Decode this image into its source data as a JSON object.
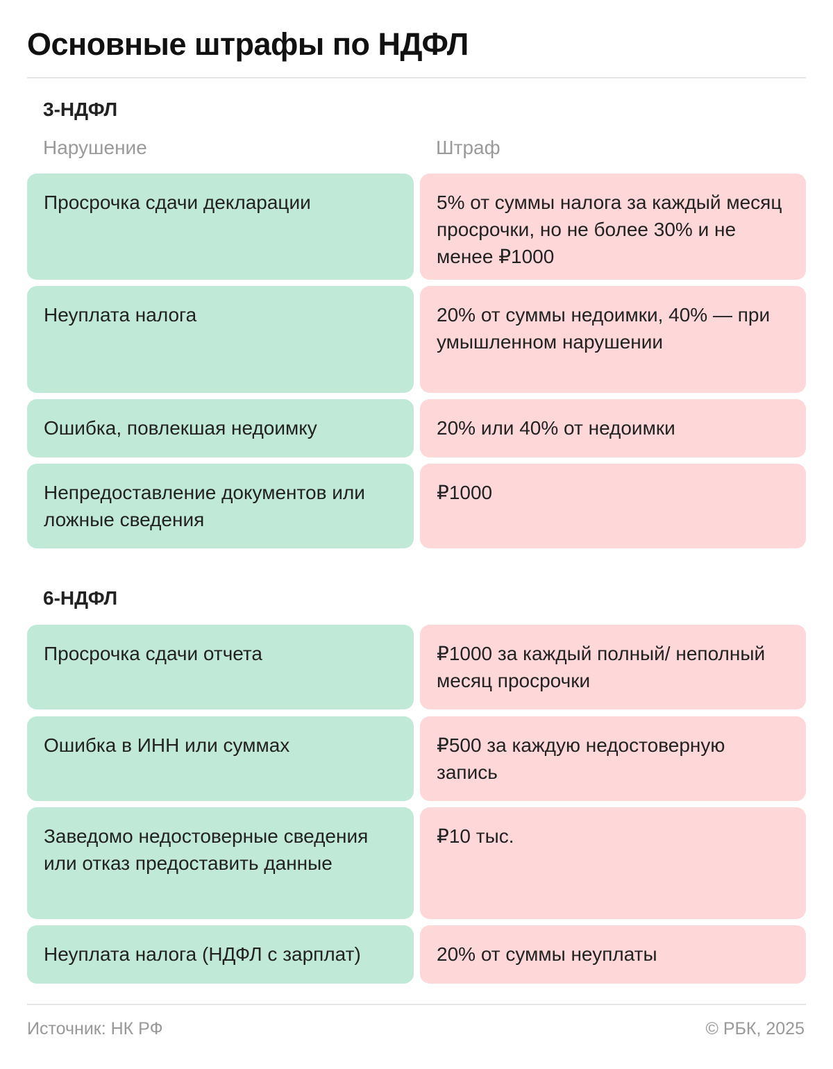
{
  "title": "Основные штрафы по НДФЛ",
  "columns": {
    "violation": "Нарушение",
    "fine": "Штраф"
  },
  "sections": [
    {
      "name": "3-НДФЛ",
      "rows": [
        {
          "violation": "Просрочка сдачи декларации",
          "fine": "5% от суммы налога за каждый месяц просрочки, но не более 30% и не менее ₽1000"
        },
        {
          "violation": "Неуплата налога",
          "fine": "20% от суммы недоимки, 40% — при умышленном нарушении"
        },
        {
          "violation": "Ошибка, повлекшая недоимку",
          "fine": "20% или 40% от недоимки"
        },
        {
          "violation": "Непредоставление документов или ложные сведения",
          "fine": "₽1000"
        }
      ]
    },
    {
      "name": "6-НДФЛ",
      "rows": [
        {
          "violation": "Просрочка сдачи отчета",
          "fine": "₽1000 за каждый полный/ неполный месяц просрочки"
        },
        {
          "violation": "Ошибка в ИНН или суммах",
          "fine": "₽500 за каждую недостоверную запись"
        },
        {
          "violation": "Заведомо недостоверные сведения или отказ предоставить данные",
          "fine": "₽10 тыс."
        },
        {
          "violation": "Неуплата налога (НДФЛ с зарплат)",
          "fine": "20% от суммы неуплаты"
        }
      ]
    }
  ],
  "footer": {
    "source": "Источник: НК РФ",
    "copyright": "© РБК, 2025"
  },
  "colors": {
    "violation_bg": "#c1e9d8",
    "fine_bg": "#fed7d8"
  }
}
